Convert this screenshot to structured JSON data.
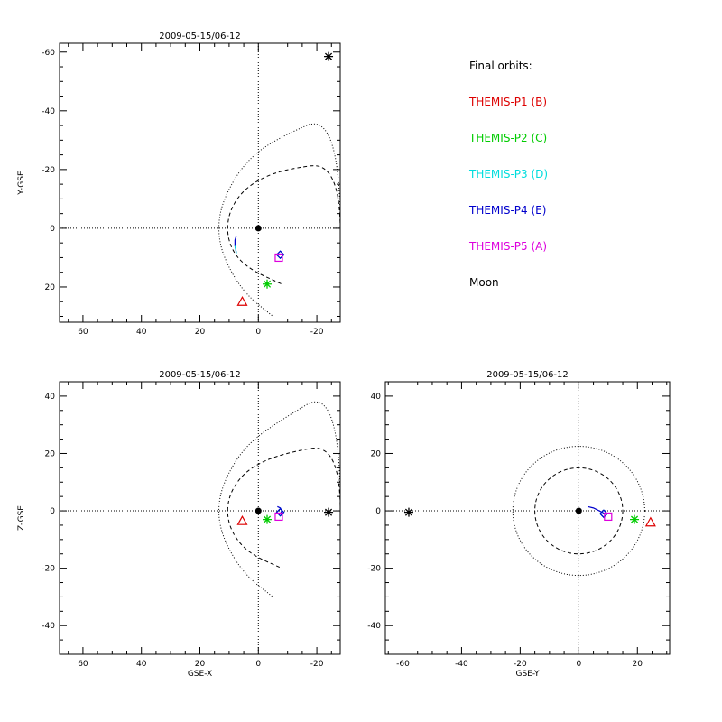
{
  "legend": {
    "title": "Final orbits:",
    "items": [
      {
        "label": "THEMIS-P1 (B)",
        "color": "#dd0000"
      },
      {
        "label": "THEMIS-P2 (C)",
        "color": "#00cc00"
      },
      {
        "label": "THEMIS-P3 (D)",
        "color": "#00dddd"
      },
      {
        "label": "THEMIS-P4 (E)",
        "color": "#0000cc"
      },
      {
        "label": "THEMIS-P5 (A)",
        "color": "#dd00dd"
      },
      {
        "label": "Moon",
        "color": "#000000"
      }
    ]
  },
  "chart_data": [
    {
      "type": "scatter",
      "title": "2009-05-15/06-12",
      "xlabel": "",
      "ylabel": "Y-GSE",
      "xlim": [
        68,
        -28
      ],
      "ylim": [
        32,
        -63
      ],
      "xticks": [
        60,
        40,
        20,
        0,
        -20
      ],
      "yticks": [
        -60,
        -40,
        -20,
        0,
        20
      ],
      "reference_lines": {
        "x": 0,
        "y": 0
      },
      "earth": [
        0,
        0
      ],
      "bow_shock": [
        [
          14,
          0
        ],
        [
          12,
          -10
        ],
        [
          5,
          -22
        ],
        [
          -5,
          -30
        ],
        [
          -28,
          -40
        ],
        [
          -28,
          40
        ],
        [
          -5,
          30
        ],
        [
          5,
          22
        ],
        [
          12,
          10
        ]
      ],
      "magnetopause": [
        [
          11,
          0
        ],
        [
          9,
          -8
        ],
        [
          3,
          -15
        ],
        [
          -8,
          -20
        ],
        [
          -28,
          -22.5
        ],
        [
          -28,
          24
        ],
        [
          -8,
          19
        ],
        [
          3,
          14
        ],
        [
          9,
          8
        ]
      ],
      "orbit_tracks": [
        {
          "series": "THEMIS-P4 (E)",
          "points": [
            [
              7.5,
              2.5
            ],
            [
              8,
              4
            ],
            [
              8,
              6
            ],
            [
              7.5,
              8.5
            ]
          ]
        },
        {
          "series": "THEMIS-P3 (D)",
          "points": [
            [
              8,
              6
            ],
            [
              7.5,
              8.5
            ]
          ]
        }
      ],
      "markers": [
        {
          "series": "THEMIS-P1 (B)",
          "symbol": "triangle",
          "x": 5.5,
          "y": 25
        },
        {
          "series": "THEMIS-P2 (C)",
          "symbol": "asterisk",
          "x": -3,
          "y": 19
        },
        {
          "series": "THEMIS-P3 (D)",
          "symbol": "diamond",
          "x": -7.5,
          "y": 9
        },
        {
          "series": "THEMIS-P4 (E)",
          "symbol": "diamond",
          "x": -7.5,
          "y": 9
        },
        {
          "series": "THEMIS-P5 (A)",
          "symbol": "square",
          "x": -7,
          "y": 10
        },
        {
          "series": "Moon",
          "symbol": "asterisk",
          "x": -24,
          "y": -58.5
        }
      ]
    },
    {
      "type": "scatter",
      "title": "2009-05-15/06-12",
      "xlabel": "GSE-X",
      "ylabel": "Z-GSE",
      "xlim": [
        68,
        -28
      ],
      "ylim": [
        -50,
        45
      ],
      "xticks": [
        60,
        40,
        20,
        0,
        -20
      ],
      "yticks": [
        40,
        20,
        0,
        -20,
        -40
      ],
      "reference_lines": {
        "x": 0,
        "y": 0
      },
      "earth": [
        0,
        0
      ],
      "bow_shock": [
        [
          14,
          0
        ],
        [
          12,
          10
        ],
        [
          5,
          22
        ],
        [
          -5,
          30
        ],
        [
          -28,
          44
        ],
        [
          -28,
          -40
        ],
        [
          -5,
          -30
        ],
        [
          5,
          -22
        ],
        [
          12,
          -10
        ]
      ],
      "magnetopause": [
        [
          11,
          0
        ],
        [
          9,
          8
        ],
        [
          3,
          15
        ],
        [
          -8,
          20
        ],
        [
          -28,
          23.5
        ],
        [
          -28,
          -22.5
        ],
        [
          -8,
          -20
        ],
        [
          3,
          -15
        ],
        [
          9,
          -8
        ]
      ],
      "orbit_tracks": [
        {
          "series": "THEMIS-P4 (E)",
          "points": [
            [
              -6.5,
              1.5
            ],
            [
              -7.5,
              1
            ],
            [
              -8,
              0
            ],
            [
              -7.5,
              -1
            ]
          ]
        }
      ],
      "markers": [
        {
          "series": "THEMIS-P1 (B)",
          "symbol": "triangle",
          "x": 5.5,
          "y": -3.5
        },
        {
          "series": "THEMIS-P2 (C)",
          "symbol": "asterisk",
          "x": -3,
          "y": -3
        },
        {
          "series": "THEMIS-P3 (D)",
          "symbol": "diamond",
          "x": -7.5,
          "y": -0.5
        },
        {
          "series": "THEMIS-P4 (E)",
          "symbol": "diamond",
          "x": -7.5,
          "y": -0.5
        },
        {
          "series": "THEMIS-P5 (A)",
          "symbol": "square",
          "x": -7,
          "y": -2
        },
        {
          "series": "Moon",
          "symbol": "asterisk",
          "x": -24,
          "y": -0.5
        }
      ]
    },
    {
      "type": "scatter",
      "title": "2009-05-15/06-12",
      "xlabel": "GSE-Y",
      "ylabel": "",
      "xlim": [
        -66,
        31
      ],
      "ylim": [
        -50,
        45
      ],
      "xticks": [
        -60,
        -40,
        -20,
        0,
        20
      ],
      "yticks": [
        40,
        20,
        0,
        -20,
        -40
      ],
      "reference_lines": {
        "x": 0,
        "y": 0
      },
      "earth": [
        0,
        0
      ],
      "bow_shock_radius": 22.5,
      "magnetopause_radius": 15,
      "orbit_tracks": [
        {
          "series": "THEMIS-P4 (E)",
          "points": [
            [
              3,
              1.5
            ],
            [
              5,
              1
            ],
            [
              7,
              0
            ],
            [
              9,
              -1
            ]
          ]
        }
      ],
      "markers": [
        {
          "series": "THEMIS-P1 (B)",
          "symbol": "triangle",
          "x": 24.5,
          "y": -4
        },
        {
          "series": "THEMIS-P2 (C)",
          "symbol": "asterisk",
          "x": 19,
          "y": -3
        },
        {
          "series": "THEMIS-P3 (D)",
          "symbol": "diamond",
          "x": 8.5,
          "y": -1
        },
        {
          "series": "THEMIS-P4 (E)",
          "symbol": "diamond",
          "x": 8.5,
          "y": -1
        },
        {
          "series": "THEMIS-P5 (A)",
          "symbol": "square",
          "x": 10,
          "y": -2
        },
        {
          "series": "Moon",
          "symbol": "asterisk",
          "x": -58,
          "y": -0.5
        }
      ]
    }
  ]
}
